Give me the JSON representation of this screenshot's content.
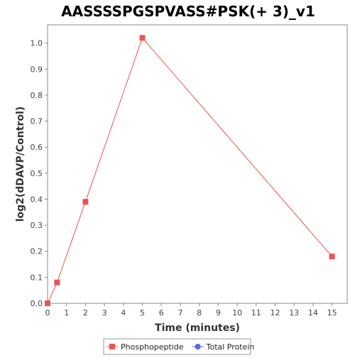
{
  "chart_data": {
    "type": "line",
    "title": "AASSSSPGSPVASS#PSK(+ 3)_v1",
    "xlabel": "Time (minutes)",
    "ylabel": "log2(dDAVP/Control)",
    "xlim": [
      0,
      15.8
    ],
    "ylim": [
      0,
      1.07
    ],
    "x_ticks": [
      0,
      1,
      2,
      3,
      4,
      5,
      6,
      7,
      8,
      9,
      10,
      11,
      12,
      13,
      14,
      15
    ],
    "y_ticks": [
      0.0,
      0.1,
      0.2,
      0.3,
      0.4,
      0.5,
      0.6,
      0.7,
      0.8,
      0.9,
      1.0
    ],
    "grid": false,
    "legend_position": "bottom",
    "series": [
      {
        "name": "Phosphopeptide",
        "color": "#e85555",
        "marker": "square",
        "x": [
          0,
          0.5,
          2,
          5,
          15
        ],
        "y": [
          0.0,
          0.08,
          0.39,
          1.02,
          0.18
        ]
      },
      {
        "name": "Total Protein",
        "color": "#5566ee",
        "marker": "circle",
        "x": [],
        "y": []
      }
    ]
  }
}
